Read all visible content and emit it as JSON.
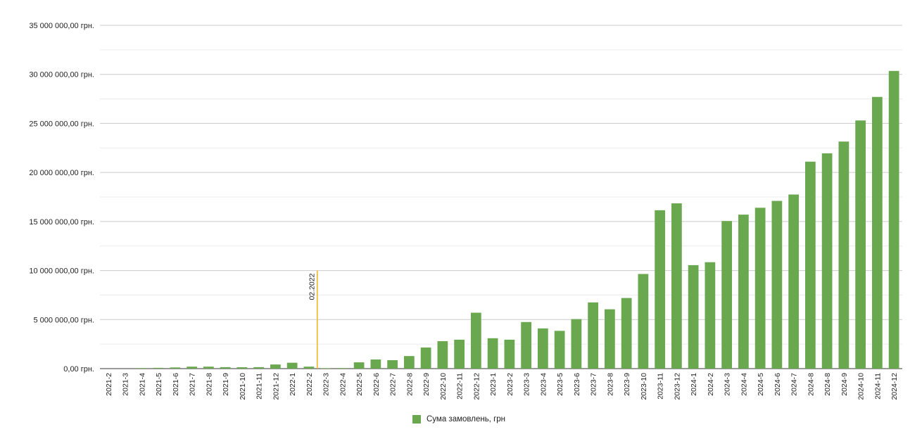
{
  "chart_data": {
    "type": "bar",
    "series": [
      {
        "name": "Сума замовлень, грн",
        "color": "#6aa84f",
        "values": [
          0,
          0,
          60000,
          80000,
          120000,
          200000,
          200000,
          150000,
          140000,
          150000,
          420000,
          600000,
          200000,
          50000,
          60000,
          640000,
          930000,
          860000,
          1280000,
          2150000,
          2800000,
          2950000,
          5700000,
          3100000,
          2950000,
          4750000,
          4100000,
          3850000,
          5050000,
          6750000,
          6050000,
          7200000,
          9650000,
          16150000,
          16850000,
          10550000,
          10850000,
          15050000,
          15700000,
          16400000,
          17100000,
          17750000,
          21100000,
          21950000,
          23150000,
          25300000,
          27700000,
          30350000
        ]
      }
    ],
    "categories": [
      "2021-2",
      "2021-3",
      "2021-4",
      "2021-5",
      "2021-6",
      "2021-7",
      "2021-8",
      "2021-9",
      "2021-10",
      "2021-11",
      "2021-12",
      "2022-1",
      "2022-2",
      "2022-3",
      "2022-4",
      "2022-5",
      "2022-6",
      "2022-7",
      "2022-8",
      "2022-9",
      "2022-10",
      "2022-11",
      "2022-12",
      "2023-1",
      "2023-2",
      "2023-3",
      "2023-4",
      "2023-5",
      "2023-6",
      "2023-7",
      "2023-8",
      "2023-9",
      "2023-10",
      "2023-11",
      "2023-12",
      "2024-1",
      "2024-2",
      "2024-3",
      "2024-4",
      "2024-5",
      "2024-6",
      "2024-7",
      "2024-8",
      "2024-8",
      "2024-9",
      "2024-10",
      "2024-11",
      "2024-12"
    ],
    "ylim": [
      0,
      35000000
    ],
    "yticks": [
      {
        "value": 0,
        "label": "0,00 грн."
      },
      {
        "value": 5000000,
        "label": "5 000 000,00 грн."
      },
      {
        "value": 10000000,
        "label": "10 000 000,00 грн."
      },
      {
        "value": 15000000,
        "label": "15 000 000,00 грн."
      },
      {
        "value": 20000000,
        "label": "20 000 000,00 грн."
      },
      {
        "value": 25000000,
        "label": "25 000 000,00 грн."
      },
      {
        "value": 30000000,
        "label": "30 000 000,00 грн."
      },
      {
        "value": 35000000,
        "label": "35 000 000,00 грн."
      }
    ],
    "grid": true,
    "legend_position": "bottom",
    "annotation": {
      "label": "02.2022",
      "between": [
        "2022-2",
        "2022-3"
      ],
      "y_top": 10000000,
      "color": "#f1b722"
    },
    "title": "",
    "xlabel": "",
    "ylabel": ""
  }
}
